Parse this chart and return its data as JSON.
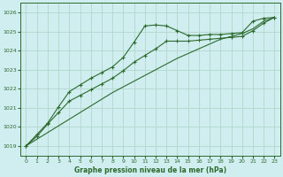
{
  "background_color": "#d0eef0",
  "grid_color": "#b0d8cc",
  "line_color": "#2d6a2d",
  "xlabel": "Graphe pression niveau de la mer (hPa)",
  "ylim": [
    1018.5,
    1026.5
  ],
  "xlim": [
    -0.5,
    23.5
  ],
  "yticks": [
    1019,
    1020,
    1021,
    1022,
    1023,
    1024,
    1025,
    1026
  ],
  "xticks": [
    0,
    1,
    2,
    3,
    4,
    5,
    6,
    7,
    8,
    9,
    10,
    11,
    12,
    13,
    14,
    15,
    16,
    17,
    18,
    19,
    20,
    21,
    22,
    23
  ],
  "series_straight_x": [
    0,
    1,
    2,
    3,
    4,
    5,
    6,
    7,
    8,
    9,
    10,
    11,
    12,
    13,
    14,
    15,
    16,
    17,
    18,
    19,
    20,
    21,
    22,
    23
  ],
  "series_straight_y": [
    1019.0,
    1019.35,
    1019.7,
    1020.05,
    1020.4,
    1020.75,
    1021.1,
    1021.45,
    1021.8,
    1022.1,
    1022.4,
    1022.7,
    1023.0,
    1023.3,
    1023.6,
    1023.85,
    1024.1,
    1024.35,
    1024.6,
    1024.75,
    1024.9,
    1025.15,
    1025.55,
    1025.75
  ],
  "series_peak_x": [
    0,
    1,
    2,
    3,
    4,
    5,
    6,
    7,
    8,
    9,
    10,
    11,
    12,
    13,
    14,
    15,
    16,
    17,
    18,
    19,
    20,
    21,
    22,
    23
  ],
  "series_peak_y": [
    1019.0,
    1019.6,
    1020.2,
    1021.05,
    1021.85,
    1022.2,
    1022.55,
    1022.85,
    1023.15,
    1023.65,
    1024.45,
    1025.3,
    1025.35,
    1025.3,
    1025.05,
    1024.8,
    1024.8,
    1024.85,
    1024.85,
    1024.9,
    1024.95,
    1025.55,
    1025.7,
    1025.75
  ],
  "series_mid_x": [
    0,
    1,
    2,
    3,
    4,
    5,
    6,
    7,
    8,
    9,
    10,
    11,
    12,
    13,
    14,
    15,
    16,
    17,
    18,
    19,
    20,
    21,
    22,
    23
  ],
  "series_mid_y": [
    1019.0,
    1019.5,
    1020.15,
    1020.75,
    1021.35,
    1021.65,
    1021.95,
    1022.25,
    1022.55,
    1022.95,
    1023.4,
    1023.75,
    1024.1,
    1024.5,
    1024.5,
    1024.5,
    1024.55,
    1024.6,
    1024.65,
    1024.7,
    1024.75,
    1025.05,
    1025.45,
    1025.75
  ]
}
